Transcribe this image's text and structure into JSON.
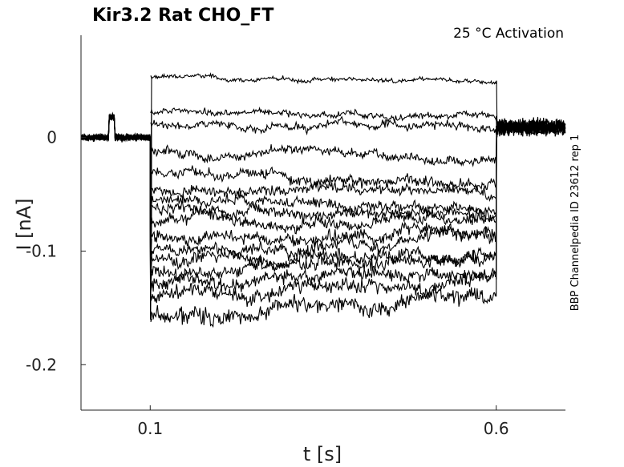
{
  "chart_data": {
    "type": "line",
    "title": "Kir3.2  Rat  CHO_FT",
    "subtitle": "25 °C  Activation",
    "xlabel": "t [s]",
    "ylabel": "I [nA]",
    "side_label": "BBP Channelpedia ID 23612 rep 1",
    "xlim": [
      0.0,
      0.7
    ],
    "ylim": [
      -0.24,
      0.09
    ],
    "xticks": [
      0.1,
      0.6
    ],
    "xtick_labels": [
      "0.1",
      "0.6"
    ],
    "yticks": [
      0,
      -0.1,
      -0.2
    ],
    "ytick_labels": [
      "0",
      "-0.1",
      "-0.2"
    ],
    "grid": false,
    "line_color": "#000000",
    "pulse": {
      "start": 0.1,
      "end": 0.6,
      "prepulse_start": 0.04,
      "prepulse_end": 0.048
    },
    "series": [
      {
        "start": 0.053,
        "end": 0.049,
        "noise": 0.0017
      },
      {
        "start": 0.022,
        "end": 0.019,
        "noise": 0.0025
      },
      {
        "start": 0.011,
        "end": 0.01,
        "noise": 0.003
      },
      {
        "start": -0.012,
        "end": -0.018,
        "noise": 0.0035
      },
      {
        "start": -0.03,
        "end": -0.04,
        "noise": 0.004
      },
      {
        "start": -0.045,
        "end": -0.048,
        "noise": 0.004
      },
      {
        "start": -0.055,
        "end": -0.063,
        "noise": 0.004
      },
      {
        "start": -0.062,
        "end": -0.068,
        "noise": 0.0045
      },
      {
        "start": -0.075,
        "end": -0.072,
        "noise": 0.0045
      },
      {
        "start": -0.09,
        "end": -0.085,
        "noise": 0.0045
      },
      {
        "start": -0.1,
        "end": -0.09,
        "noise": 0.005
      },
      {
        "start": -0.11,
        "end": -0.1,
        "noise": 0.005
      },
      {
        "start": -0.12,
        "end": -0.108,
        "noise": 0.005
      },
      {
        "start": -0.13,
        "end": -0.118,
        "noise": 0.0055
      },
      {
        "start": -0.14,
        "end": -0.125,
        "noise": 0.0055
      },
      {
        "start": -0.16,
        "end": -0.14,
        "noise": 0.006
      }
    ]
  }
}
